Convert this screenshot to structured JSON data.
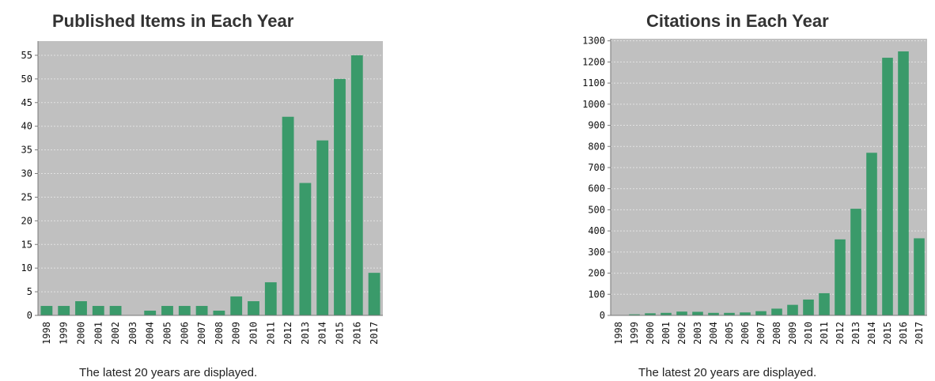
{
  "colors": {
    "bar": "#3a9a6a",
    "plot_bg": "#c0c0c0",
    "grid": "#e2e2e2",
    "axis": "#777777"
  },
  "chart_data": [
    {
      "type": "bar",
      "title": "Published Items in Each Year",
      "note": "The latest 20 years are displayed.",
      "categories": [
        "1998",
        "1999",
        "2000",
        "2001",
        "2002",
        "2003",
        "2004",
        "2005",
        "2006",
        "2007",
        "2008",
        "2009",
        "2010",
        "2011",
        "2012",
        "2013",
        "2014",
        "2015",
        "2016",
        "2017"
      ],
      "values": [
        2,
        2,
        3,
        2,
        2,
        0,
        1,
        2,
        2,
        2,
        1,
        4,
        3,
        7,
        42,
        28,
        37,
        50,
        55,
        9
      ],
      "yticks": [
        0,
        5,
        10,
        15,
        20,
        25,
        30,
        35,
        40,
        45,
        50,
        55
      ],
      "ylim": [
        0,
        58
      ],
      "grid": true
    },
    {
      "type": "bar",
      "title": "Citations in Each Year",
      "note": "The latest 20 years are displayed.",
      "categories": [
        "1998",
        "1999",
        "2000",
        "2001",
        "2002",
        "2003",
        "2004",
        "2005",
        "2006",
        "2007",
        "2008",
        "2009",
        "2010",
        "2011",
        "2012",
        "2013",
        "2014",
        "2015",
        "2016",
        "2017"
      ],
      "values": [
        0,
        5,
        10,
        12,
        18,
        17,
        12,
        12,
        14,
        20,
        32,
        50,
        75,
        105,
        360,
        505,
        770,
        1220,
        1250,
        365
      ],
      "yticks": [
        0,
        100,
        200,
        300,
        400,
        500,
        600,
        700,
        800,
        900,
        1000,
        1100,
        1200,
        1300
      ],
      "ylim": [
        0,
        1310
      ],
      "grid": true
    }
  ]
}
